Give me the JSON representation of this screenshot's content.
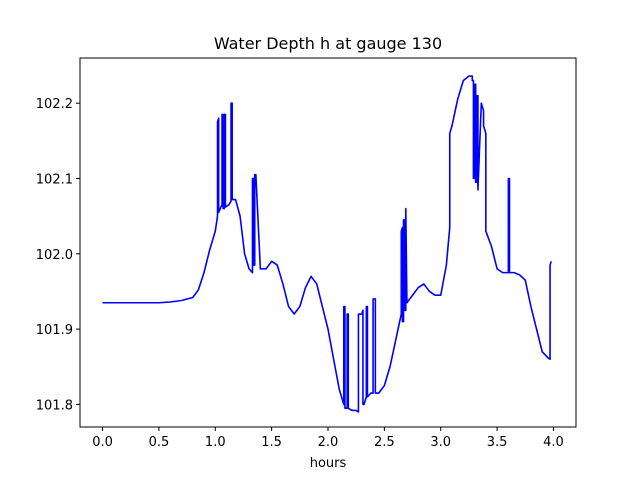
{
  "chart_data": {
    "type": "line",
    "title": "Water Depth h at gauge 130",
    "xlabel": "hours",
    "ylabel": "",
    "xlim": [
      -0.2,
      4.2
    ],
    "ylim": [
      101.77,
      102.26
    ],
    "xticks": [
      0.0,
      0.5,
      1.0,
      1.5,
      2.0,
      2.5,
      3.0,
      3.5,
      4.0
    ],
    "xtick_labels": [
      "0.0",
      "0.5",
      "1.0",
      "1.5",
      "2.0",
      "2.5",
      "3.0",
      "3.5",
      "4.0"
    ],
    "yticks": [
      101.8,
      101.9,
      102.0,
      102.1,
      102.2
    ],
    "ytick_labels": [
      "101.8",
      "101.9",
      "102.0",
      "102.1",
      "102.2"
    ],
    "grid": false,
    "legend": "none",
    "series": [
      {
        "color": "#0000ff",
        "x": [
          0.0,
          0.1,
          0.2,
          0.3,
          0.4,
          0.5,
          0.6,
          0.7,
          0.8,
          0.85,
          0.9,
          0.95,
          1.0,
          1.02,
          1.02,
          1.03,
          1.03,
          1.05,
          1.06,
          1.06,
          1.07,
          1.07,
          1.08,
          1.08,
          1.09,
          1.09,
          1.12,
          1.14,
          1.14,
          1.15,
          1.15,
          1.18,
          1.22,
          1.26,
          1.3,
          1.33,
          1.33,
          1.34,
          1.34,
          1.35,
          1.35,
          1.36,
          1.4,
          1.45,
          1.5,
          1.55,
          1.6,
          1.65,
          1.7,
          1.75,
          1.8,
          1.85,
          1.9,
          1.95,
          2.0,
          2.05,
          2.1,
          2.14,
          2.14,
          2.15,
          2.15,
          2.17,
          2.17,
          2.18,
          2.18,
          2.2,
          2.22,
          2.25,
          2.27,
          2.27,
          2.3,
          2.31,
          2.31,
          2.32,
          2.34,
          2.34,
          2.35,
          2.35,
          2.38,
          2.4,
          2.4,
          2.42,
          2.42,
          2.45,
          2.5,
          2.55,
          2.6,
          2.65,
          2.65,
          2.66,
          2.66,
          2.67,
          2.67,
          2.68,
          2.68,
          2.69,
          2.69,
          2.7,
          2.75,
          2.8,
          2.85,
          2.9,
          2.95,
          3.0,
          3.05,
          3.08,
          3.08,
          3.1,
          3.15,
          3.2,
          3.25,
          3.28,
          3.28,
          3.29,
          3.29,
          3.3,
          3.3,
          3.31,
          3.31,
          3.32,
          3.32,
          3.33,
          3.33,
          3.36,
          3.38,
          3.38,
          3.4,
          3.4,
          3.45,
          3.5,
          3.55,
          3.6,
          3.6,
          3.61,
          3.61,
          3.65,
          3.7,
          3.75,
          3.8,
          3.85,
          3.9,
          3.95,
          3.97,
          3.97,
          3.98
        ],
        "y": [
          101.935,
          101.935,
          101.935,
          101.935,
          101.935,
          101.935,
          101.936,
          101.938,
          101.942,
          101.952,
          101.975,
          102.005,
          102.03,
          102.05,
          102.175,
          102.18,
          102.055,
          102.062,
          102.065,
          102.185,
          102.185,
          102.06,
          102.06,
          102.185,
          102.185,
          102.062,
          102.065,
          102.07,
          102.2,
          102.2,
          102.072,
          102.072,
          102.05,
          102.0,
          101.98,
          101.975,
          102.1,
          102.1,
          101.985,
          101.985,
          102.105,
          102.105,
          101.98,
          101.98,
          101.99,
          101.985,
          101.96,
          101.93,
          101.92,
          101.93,
          101.955,
          101.97,
          101.96,
          101.93,
          101.9,
          101.86,
          101.82,
          101.8,
          101.93,
          101.93,
          101.795,
          101.795,
          101.92,
          101.92,
          101.795,
          101.793,
          101.792,
          101.792,
          101.79,
          101.92,
          101.92,
          101.925,
          101.8,
          101.8,
          101.81,
          101.93,
          101.93,
          101.81,
          101.815,
          101.815,
          101.94,
          101.94,
          101.815,
          101.815,
          101.825,
          101.85,
          101.885,
          101.92,
          102.03,
          102.035,
          101.91,
          101.91,
          102.045,
          102.045,
          101.925,
          101.925,
          102.06,
          101.935,
          101.945,
          101.955,
          101.96,
          101.95,
          101.945,
          101.945,
          101.985,
          102.035,
          102.16,
          102.17,
          102.205,
          102.23,
          102.236,
          102.236,
          102.23,
          102.23,
          102.1,
          102.1,
          102.225,
          102.225,
          102.095,
          102.095,
          102.21,
          102.21,
          102.085,
          102.2,
          102.19,
          102.17,
          102.16,
          102.03,
          102.01,
          101.98,
          101.975,
          101.975,
          102.1,
          102.1,
          101.975,
          101.975,
          101.972,
          101.965,
          101.93,
          101.9,
          101.87,
          101.862,
          101.86,
          101.985,
          101.99
        ]
      }
    ]
  }
}
